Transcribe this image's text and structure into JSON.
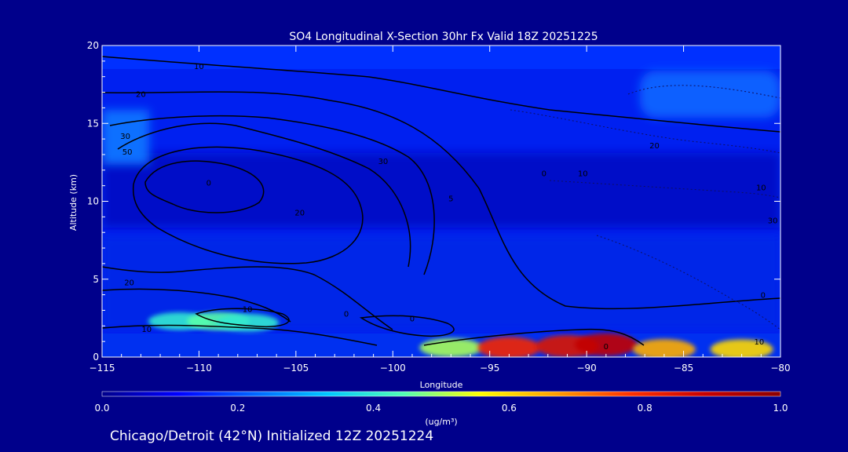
{
  "chart_data": {
    "type": "heatmap",
    "title": "SO4 Longitudinal X-Section 30hr  Fx Valid 18Z 20251225",
    "subtitle": "Chicago/Detroit (42°N) Initialized 12Z 20251224",
    "xlabel": "Longitude",
    "ylabel": "Altitude (km)",
    "xlim": [
      -115,
      -80
    ],
    "ylim": [
      0,
      20
    ],
    "x_ticks": [
      -115,
      -110,
      -105,
      -100,
      -95,
      -90,
      -85,
      -80
    ],
    "x_tick_labels": [
      "−115",
      "−110",
      "−105",
      "−100",
      "−95",
      "−90",
      "−85",
      "−80"
    ],
    "y_ticks": [
      0,
      5,
      10,
      15,
      20
    ],
    "y_tick_labels": [
      "0",
      "5",
      "10",
      "15",
      "20"
    ],
    "colorbar": {
      "label": "(ug/m³)",
      "min": 0.0,
      "max": 1.0,
      "ticks": [
        0.0,
        0.2,
        0.4,
        0.6,
        0.8,
        1.0
      ],
      "tick_labels": [
        "0.0",
        "0.2",
        "0.4",
        "0.6",
        "0.8",
        "1.0"
      ],
      "colors": [
        "#00008b",
        "#0000ff",
        "#0064ff",
        "#00c8ff",
        "#50ffb4",
        "#ffff00",
        "#ffa000",
        "#ff3200",
        "#c80000",
        "#8b0000"
      ]
    },
    "surface_high_concentration": [
      {
        "lon": -111,
        "alt": 2.3,
        "value": 0.4
      },
      {
        "lon": -109,
        "alt": 2.3,
        "value": 0.45
      },
      {
        "lon": -107.5,
        "alt": 2.2,
        "value": 0.4
      },
      {
        "lon": -97,
        "alt": 0.6,
        "value": 0.5
      },
      {
        "lon": -94,
        "alt": 0.6,
        "value": 0.8
      },
      {
        "lon": -91,
        "alt": 0.7,
        "value": 0.85
      },
      {
        "lon": -89,
        "alt": 0.8,
        "value": 0.9
      },
      {
        "lon": -86,
        "alt": 0.5,
        "value": 0.65
      },
      {
        "lon": -82,
        "alt": 0.5,
        "value": 0.6
      }
    ],
    "contour_labels": [
      {
        "text": "10",
        "lon": -110,
        "alt": 18.5
      },
      {
        "text": "20",
        "lon": -113,
        "alt": 16.7
      },
      {
        "text": "30",
        "lon": -113.8,
        "alt": 14.0
      },
      {
        "text": "50",
        "lon": -113.7,
        "alt": 13.0
      },
      {
        "text": "0",
        "lon": -109.5,
        "alt": 11.0
      },
      {
        "text": "20",
        "lon": -104.8,
        "alt": 9.1
      },
      {
        "text": "30",
        "lon": -100.5,
        "alt": 12.4
      },
      {
        "text": "5",
        "lon": -97,
        "alt": 10.0
      },
      {
        "text": "0",
        "lon": -92.2,
        "alt": 11.6
      },
      {
        "text": "10",
        "lon": -90.2,
        "alt": 11.6
      },
      {
        "text": "20",
        "lon": -86.5,
        "alt": 13.4
      },
      {
        "text": "10",
        "lon": -81,
        "alt": 10.7
      },
      {
        "text": "30",
        "lon": -80.4,
        "alt": 8.6
      },
      {
        "text": "20",
        "lon": -113.6,
        "alt": 4.6
      },
      {
        "text": "10",
        "lon": -107.5,
        "alt": 2.9
      },
      {
        "text": "10",
        "lon": -112.7,
        "alt": 1.6
      },
      {
        "text": "0",
        "lon": -102.4,
        "alt": 2.6
      },
      {
        "text": "0",
        "lon": -99,
        "alt": 2.3
      },
      {
        "text": "10",
        "lon": -81.1,
        "alt": 0.8
      },
      {
        "text": "0",
        "lon": -80.9,
        "alt": 3.8
      },
      {
        "text": "0",
        "lon": -89,
        "alt": 0.5
      }
    ]
  }
}
